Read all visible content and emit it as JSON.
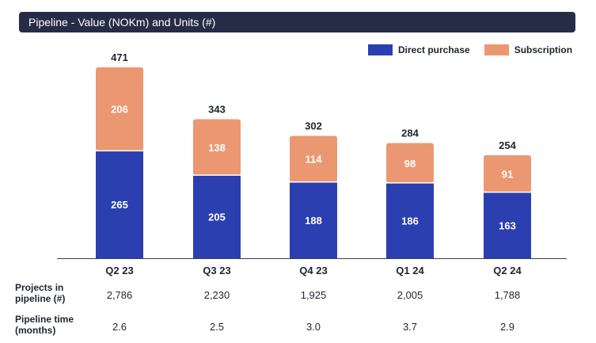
{
  "title": "Pipeline - Value (NOKm) and Units (#)",
  "legend": {
    "direct_purchase": "Direct purchase",
    "subscription": "Subscription"
  },
  "colors": {
    "direct_purchase": "#2b3fb0",
    "subscription": "#eb9872",
    "title_bg": "#262c46"
  },
  "chart_data": {
    "type": "bar",
    "stacked": true,
    "categories": [
      "Q2 23",
      "Q3 23",
      "Q4 23",
      "Q1 24",
      "Q2 24"
    ],
    "series": [
      {
        "name": "Direct purchase",
        "values": [
          265,
          205,
          188,
          186,
          163
        ]
      },
      {
        "name": "Subscription",
        "values": [
          206,
          138,
          114,
          98,
          91
        ]
      }
    ],
    "totals": [
      "471",
      "343",
      "302",
      "284",
      "254"
    ],
    "ylim": [
      0,
      471
    ],
    "legend_position": "top-right",
    "grid": false
  },
  "table": {
    "rows": [
      {
        "label_line1": "Projects in",
        "label_line2": "pipeline (#)",
        "values": [
          "2,786",
          "2,230",
          "1,925",
          "2,005",
          "1,788"
        ]
      },
      {
        "label_line1": "Pipeline time",
        "label_line2": "(months)",
        "values": [
          "2.6",
          "2.5",
          "3.0",
          "3.7",
          "2.9"
        ]
      }
    ]
  }
}
